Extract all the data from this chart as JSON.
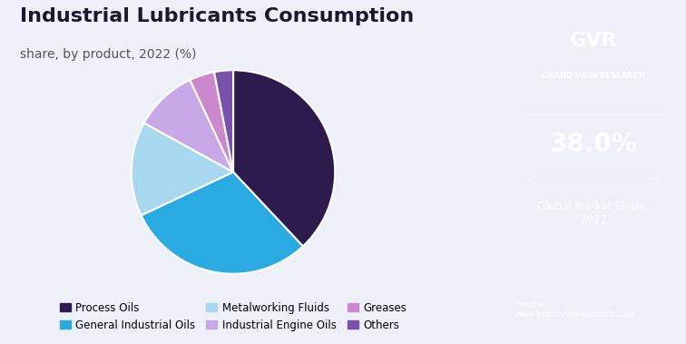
{
  "title": "Industrial Lubricants Consumption",
  "subtitle": "share, by product, 2022 (%)",
  "labels": [
    "Process Oils",
    "General Industrial Oils",
    "Metalworking Fluids",
    "Industrial Engine Oils",
    "Greases",
    "Others"
  ],
  "values": [
    38.0,
    30.0,
    15.0,
    10.0,
    4.0,
    3.0
  ],
  "colors": [
    "#2d1b4e",
    "#29abe2",
    "#a8d8f0",
    "#c9a8e8",
    "#cc88cc",
    "#7b52ab"
  ],
  "bg_color": "#edf1f7",
  "right_panel_bg": "#1e1b3a",
  "highlight_value": "38.0%",
  "highlight_label": "Global Market Share,\n2022",
  "source_text": "Source:\nwww.grandviewresearch.com",
  "startangle": 90,
  "legend_fontsize": 8.5,
  "title_fontsize": 16,
  "subtitle_fontsize": 10
}
